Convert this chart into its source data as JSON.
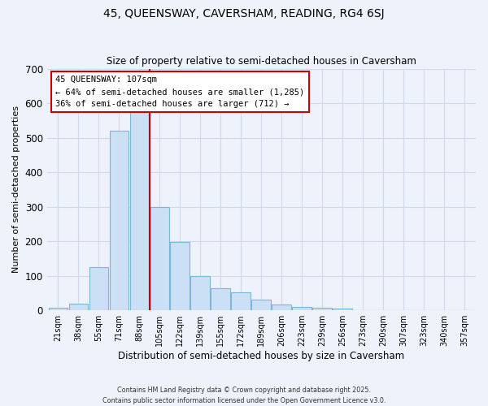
{
  "title": "45, QUEENSWAY, CAVERSHAM, READING, RG4 6SJ",
  "subtitle": "Size of property relative to semi-detached houses in Caversham",
  "xlabel": "Distribution of semi-detached houses by size in Caversham",
  "ylabel": "Number of semi-detached properties",
  "bar_labels": [
    "21sqm",
    "38sqm",
    "55sqm",
    "71sqm",
    "88sqm",
    "105sqm",
    "122sqm",
    "139sqm",
    "155sqm",
    "172sqm",
    "189sqm",
    "206sqm",
    "223sqm",
    "239sqm",
    "256sqm",
    "273sqm",
    "290sqm",
    "307sqm",
    "323sqm",
    "340sqm",
    "357sqm"
  ],
  "bar_values": [
    8,
    20,
    125,
    520,
    575,
    300,
    197,
    100,
    65,
    52,
    30,
    17,
    10,
    7,
    5,
    0,
    0,
    0,
    0,
    0,
    0
  ],
  "bar_color": "#cce0f5",
  "bar_edge_color": "#7ab8d8",
  "vline_color": "#cc0000",
  "vline_label": "45 QUEENSWAY: 107sqm",
  "annotation_smaller": "← 64% of semi-detached houses are smaller (1,285)",
  "annotation_larger": "36% of semi-detached houses are larger (712) →",
  "ylim": [
    0,
    700
  ],
  "yticks": [
    0,
    100,
    200,
    300,
    400,
    500,
    600,
    700
  ],
  "box_edge_color": "#cc0000",
  "footnote1": "Contains HM Land Registry data © Crown copyright and database right 2025.",
  "footnote2": "Contains public sector information licensed under the Open Government Licence v3.0.",
  "bg_color": "#eef2fb",
  "grid_color": "#d0d8ee"
}
